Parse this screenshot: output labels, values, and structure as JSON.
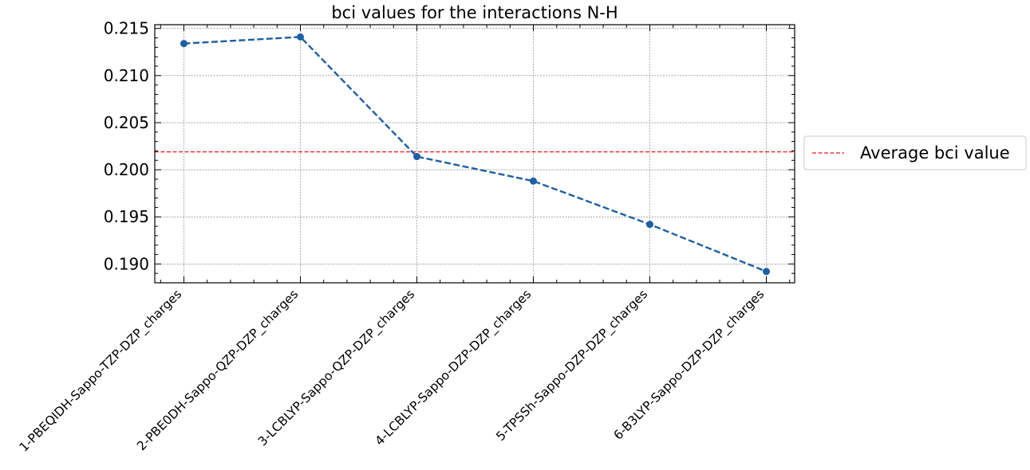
{
  "chart_data": {
    "type": "line",
    "title": "bci values for the interactions N-H",
    "xlabel": "",
    "ylabel": "",
    "categories": [
      "1-PBEQIDH-Sappo-TZP-DZP_charges",
      "2-PBE0DH-Sappo-QZP-DZP_charges",
      "3-LCBLYP-Sappo-QZP-DZP_charges",
      "4-LCBLYP-Sappo-DZP-DZP_charges",
      "5-TPSSh-Sappo-DZP-DZP_charges",
      "6-B3LYP-Sappo-DZP-DZP_charges"
    ],
    "series": [
      {
        "values": [
          0.2134,
          0.2141,
          0.2014,
          0.1988,
          0.1942,
          0.1892
        ],
        "color": "#1f5fa0",
        "linestyle": "dashed",
        "marker": "circle"
      }
    ],
    "reference_line": {
      "name": "Average bci value",
      "value": 0.2019,
      "color": "#e8191c",
      "linestyle": "dashed"
    },
    "ylim": [
      0.188,
      0.2154
    ],
    "yticks": [
      "0.190",
      "0.195",
      "0.200",
      "0.205",
      "0.210",
      "0.215"
    ],
    "ytick_values": [
      0.19,
      0.195,
      0.2,
      0.205,
      0.21,
      0.215
    ],
    "grid": true,
    "legend_position": "outside-right"
  }
}
